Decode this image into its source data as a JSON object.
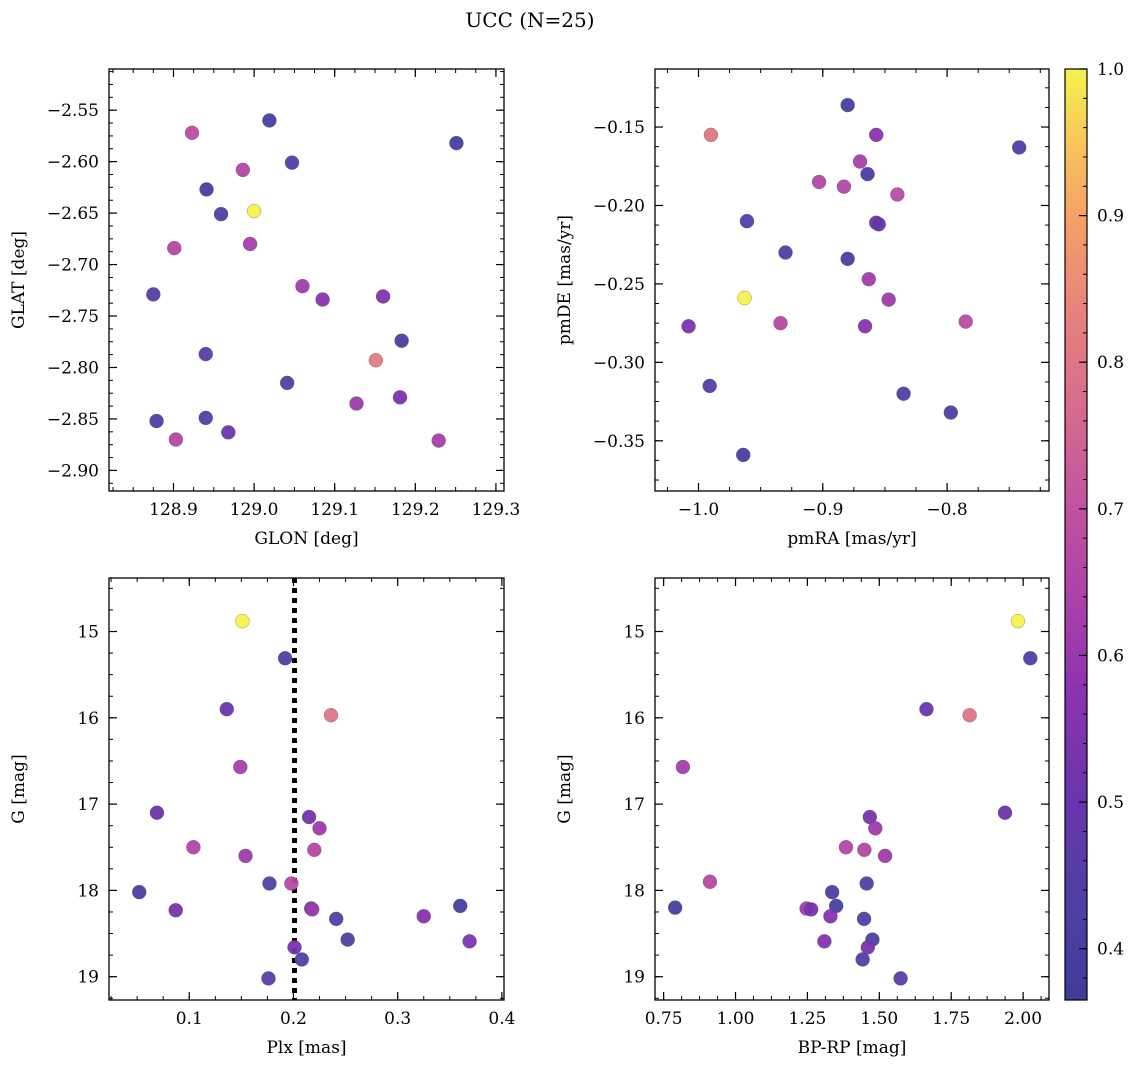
{
  "figure": {
    "title": "UCC (N=25)"
  },
  "colorbar": {
    "range": [
      0.365,
      1.0
    ],
    "ticks": [
      "0.4",
      "0.5",
      "0.6",
      "0.7",
      "0.8",
      "0.9",
      "1.0"
    ],
    "tick_values": [
      0.4,
      0.5,
      0.6,
      0.7,
      0.8,
      0.9,
      1.0
    ],
    "colormap": "plasma"
  },
  "chart_data": [
    {
      "type": "scatter",
      "panel": "top-left",
      "xlabel": "GLON [deg]",
      "ylabel": "GLAT [deg]",
      "xlim": [
        128.82,
        129.31
      ],
      "ylim": [
        -2.92,
        -2.51
      ],
      "y_inverted": false,
      "xticks": [
        128.9,
        129.0,
        129.1,
        129.2,
        129.3
      ],
      "xtick_labels": [
        "128.9",
        "129.0",
        "129.1",
        "129.2",
        "129.3"
      ],
      "yticks": [
        -2.55,
        -2.6,
        -2.65,
        -2.7,
        -2.75,
        -2.8,
        -2.85,
        -2.9
      ],
      "ytick_labels": [
        "−2.55",
        "−2.60",
        "−2.65",
        "−2.70",
        "−2.75",
        "−2.80",
        "−2.85",
        "−2.90"
      ],
      "points": [
        {
          "x": 128.923,
          "y": -2.572,
          "c": 0.68
        },
        {
          "x": 129.019,
          "y": -2.56,
          "c": 0.4
        },
        {
          "x": 129.251,
          "y": -2.582,
          "c": 0.4
        },
        {
          "x": 128.986,
          "y": -2.608,
          "c": 0.66
        },
        {
          "x": 129.047,
          "y": -2.601,
          "c": 0.43
        },
        {
          "x": 128.941,
          "y": -2.627,
          "c": 0.4
        },
        {
          "x": 128.959,
          "y": -2.651,
          "c": 0.42
        },
        {
          "x": 129.0,
          "y": -2.648,
          "c": 1.0
        },
        {
          "x": 128.901,
          "y": -2.684,
          "c": 0.66
        },
        {
          "x": 128.995,
          "y": -2.68,
          "c": 0.63
        },
        {
          "x": 128.875,
          "y": -2.729,
          "c": 0.45
        },
        {
          "x": 129.06,
          "y": -2.721,
          "c": 0.62
        },
        {
          "x": 129.085,
          "y": -2.734,
          "c": 0.57
        },
        {
          "x": 129.16,
          "y": -2.731,
          "c": 0.56
        },
        {
          "x": 129.183,
          "y": -2.774,
          "c": 0.41
        },
        {
          "x": 128.94,
          "y": -2.787,
          "c": 0.46
        },
        {
          "x": 129.151,
          "y": -2.793,
          "c": 0.82
        },
        {
          "x": 129.041,
          "y": -2.815,
          "c": 0.44
        },
        {
          "x": 129.127,
          "y": -2.835,
          "c": 0.61
        },
        {
          "x": 129.181,
          "y": -2.829,
          "c": 0.54
        },
        {
          "x": 128.879,
          "y": -2.852,
          "c": 0.42
        },
        {
          "x": 128.94,
          "y": -2.849,
          "c": 0.43
        },
        {
          "x": 128.968,
          "y": -2.863,
          "c": 0.51
        },
        {
          "x": 128.903,
          "y": -2.87,
          "c": 0.66
        },
        {
          "x": 129.229,
          "y": -2.871,
          "c": 0.63
        }
      ]
    },
    {
      "type": "scatter",
      "panel": "top-right",
      "xlabel": "pmRA [mas/yr]",
      "ylabel": "pmDE [mas/yr]",
      "xlim": [
        -1.035,
        -0.718
      ],
      "ylim": [
        -0.382,
        -0.113
      ],
      "y_inverted": false,
      "xticks": [
        -1.0,
        -0.9,
        -0.8
      ],
      "xtick_labels": [
        "−1.0",
        "−0.9",
        "−0.8"
      ],
      "yticks": [
        -0.15,
        -0.2,
        -0.25,
        -0.3,
        -0.35
      ],
      "ytick_labels": [
        "−0.15",
        "−0.20",
        "−0.25",
        "−0.30",
        "−0.35"
      ],
      "points": [
        {
          "x": -0.88,
          "y": -0.136,
          "c": 0.4
        },
        {
          "x": -0.99,
          "y": -0.155,
          "c": 0.8
        },
        {
          "x": -0.857,
          "y": -0.155,
          "c": 0.57
        },
        {
          "x": -0.742,
          "y": -0.163,
          "c": 0.43
        },
        {
          "x": -0.87,
          "y": -0.172,
          "c": 0.63
        },
        {
          "x": -0.864,
          "y": -0.18,
          "c": 0.41
        },
        {
          "x": -0.903,
          "y": -0.185,
          "c": 0.66
        },
        {
          "x": -0.883,
          "y": -0.188,
          "c": 0.66
        },
        {
          "x": -0.84,
          "y": -0.193,
          "c": 0.68
        },
        {
          "x": -0.961,
          "y": -0.21,
          "c": 0.43
        },
        {
          "x": -0.857,
          "y": -0.211,
          "c": 0.52
        },
        {
          "x": -0.855,
          "y": -0.212,
          "c": 0.48
        },
        {
          "x": -0.93,
          "y": -0.23,
          "c": 0.42
        },
        {
          "x": -0.88,
          "y": -0.234,
          "c": 0.4
        },
        {
          "x": -0.863,
          "y": -0.247,
          "c": 0.62
        },
        {
          "x": -0.963,
          "y": -0.259,
          "c": 1.0
        },
        {
          "x": -0.847,
          "y": -0.26,
          "c": 0.61
        },
        {
          "x": -1.008,
          "y": -0.277,
          "c": 0.54
        },
        {
          "x": -0.934,
          "y": -0.275,
          "c": 0.67
        },
        {
          "x": -0.866,
          "y": -0.277,
          "c": 0.57
        },
        {
          "x": -0.785,
          "y": -0.274,
          "c": 0.68
        },
        {
          "x": -0.991,
          "y": -0.315,
          "c": 0.45
        },
        {
          "x": -0.835,
          "y": -0.32,
          "c": 0.42
        },
        {
          "x": -0.797,
          "y": -0.332,
          "c": 0.42
        },
        {
          "x": -0.964,
          "y": -0.359,
          "c": 0.4
        }
      ]
    },
    {
      "type": "scatter",
      "panel": "bottom-left",
      "xlabel": "Plx [mas]",
      "ylabel": "G [mag]",
      "xlim": [
        0.023,
        0.402
      ],
      "ylim": [
        19.27,
        14.38
      ],
      "y_inverted": true,
      "vline": 0.201,
      "xticks": [
        0.1,
        0.2,
        0.3,
        0.4
      ],
      "xtick_labels": [
        "0.1",
        "0.2",
        "0.3",
        "0.4"
      ],
      "yticks": [
        15,
        16,
        17,
        18,
        19
      ],
      "ytick_labels": [
        "15",
        "16",
        "17",
        "18",
        "19"
      ],
      "points": [
        {
          "x": 0.151,
          "y": 14.88,
          "c": 1.0
        },
        {
          "x": 0.192,
          "y": 15.31,
          "c": 0.42
        },
        {
          "x": 0.136,
          "y": 15.9,
          "c": 0.5
        },
        {
          "x": 0.236,
          "y": 15.97,
          "c": 0.8
        },
        {
          "x": 0.149,
          "y": 16.57,
          "c": 0.63
        },
        {
          "x": 0.069,
          "y": 17.1,
          "c": 0.5
        },
        {
          "x": 0.215,
          "y": 17.15,
          "c": 0.53
        },
        {
          "x": 0.225,
          "y": 17.28,
          "c": 0.61
        },
        {
          "x": 0.104,
          "y": 17.5,
          "c": 0.66
        },
        {
          "x": 0.22,
          "y": 17.53,
          "c": 0.66
        },
        {
          "x": 0.154,
          "y": 17.6,
          "c": 0.61
        },
        {
          "x": 0.177,
          "y": 17.92,
          "c": 0.43
        },
        {
          "x": 0.198,
          "y": 17.92,
          "c": 0.67
        },
        {
          "x": 0.052,
          "y": 18.02,
          "c": 0.41
        },
        {
          "x": 0.36,
          "y": 18.18,
          "c": 0.4
        },
        {
          "x": 0.217,
          "y": 18.21,
          "c": 0.52
        },
        {
          "x": 0.087,
          "y": 18.23,
          "c": 0.53
        },
        {
          "x": 0.218,
          "y": 18.22,
          "c": 0.61
        },
        {
          "x": 0.325,
          "y": 18.3,
          "c": 0.57
        },
        {
          "x": 0.241,
          "y": 18.33,
          "c": 0.43
        },
        {
          "x": 0.369,
          "y": 18.59,
          "c": 0.56
        },
        {
          "x": 0.252,
          "y": 18.57,
          "c": 0.42
        },
        {
          "x": 0.201,
          "y": 18.66,
          "c": 0.54
        },
        {
          "x": 0.208,
          "y": 18.8,
          "c": 0.43
        },
        {
          "x": 0.176,
          "y": 19.02,
          "c": 0.46
        }
      ]
    },
    {
      "type": "scatter",
      "panel": "bottom-right",
      "xlabel": "BP-RP [mag]",
      "ylabel": "G [mag]",
      "xlim": [
        0.72,
        2.09
      ],
      "ylim": [
        19.27,
        14.38
      ],
      "y_inverted": true,
      "xticks": [
        0.75,
        1.0,
        1.25,
        1.5,
        1.75,
        2.0
      ],
      "xtick_labels": [
        "0.75",
        "1.00",
        "1.25",
        "1.50",
        "1.75",
        "2.00"
      ],
      "yticks": [
        15,
        16,
        17,
        18,
        19
      ],
      "ytick_labels": [
        "15",
        "16",
        "17",
        "18",
        "19"
      ],
      "points": [
        {
          "x": 1.982,
          "y": 14.88,
          "c": 1.0
        },
        {
          "x": 2.025,
          "y": 15.31,
          "c": 0.42
        },
        {
          "x": 1.664,
          "y": 15.9,
          "c": 0.5
        },
        {
          "x": 1.814,
          "y": 15.97,
          "c": 0.8
        },
        {
          "x": 0.817,
          "y": 16.57,
          "c": 0.63
        },
        {
          "x": 1.937,
          "y": 17.1,
          "c": 0.5
        },
        {
          "x": 1.467,
          "y": 17.15,
          "c": 0.53
        },
        {
          "x": 1.486,
          "y": 17.28,
          "c": 0.61
        },
        {
          "x": 1.384,
          "y": 17.5,
          "c": 0.66
        },
        {
          "x": 1.448,
          "y": 17.53,
          "c": 0.66
        },
        {
          "x": 1.52,
          "y": 17.6,
          "c": 0.61
        },
        {
          "x": 0.911,
          "y": 17.9,
          "c": 0.67
        },
        {
          "x": 1.456,
          "y": 17.92,
          "c": 0.43
        },
        {
          "x": 1.336,
          "y": 18.02,
          "c": 0.41
        },
        {
          "x": 1.35,
          "y": 18.18,
          "c": 0.4
        },
        {
          "x": 0.79,
          "y": 18.2,
          "c": 0.4
        },
        {
          "x": 1.247,
          "y": 18.21,
          "c": 0.61
        },
        {
          "x": 1.263,
          "y": 18.22,
          "c": 0.53
        },
        {
          "x": 1.33,
          "y": 18.3,
          "c": 0.57
        },
        {
          "x": 1.447,
          "y": 18.33,
          "c": 0.43
        },
        {
          "x": 1.309,
          "y": 18.59,
          "c": 0.56
        },
        {
          "x": 1.476,
          "y": 18.57,
          "c": 0.42
        },
        {
          "x": 1.46,
          "y": 18.66,
          "c": 0.54
        },
        {
          "x": 1.442,
          "y": 18.8,
          "c": 0.43
        },
        {
          "x": 1.574,
          "y": 19.02,
          "c": 0.46
        }
      ]
    }
  ]
}
